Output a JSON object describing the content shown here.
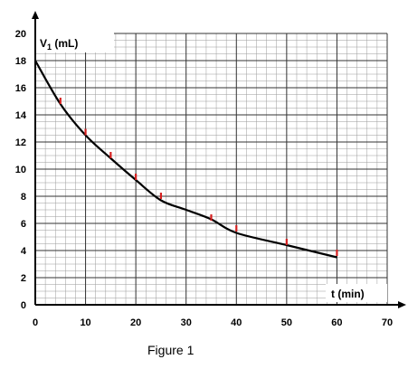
{
  "chart_data": {
    "type": "line",
    "ylabel_main": "V",
    "ylabel_sub": "1",
    "ylabel_unit": " (mL)",
    "xlabel": "t (min)",
    "caption": "Figure 1",
    "xlim": [
      0,
      70
    ],
    "ylim": [
      0,
      20
    ],
    "x_ticks": [
      0,
      10,
      20,
      30,
      40,
      50,
      60,
      70
    ],
    "y_ticks": [
      0,
      2,
      4,
      6,
      8,
      10,
      12,
      14,
      16,
      18,
      20
    ],
    "grid": true,
    "curve": {
      "x": [
        0,
        5,
        10,
        15,
        20,
        25,
        30,
        35,
        40,
        50,
        60
      ],
      "y": [
        18,
        14.8,
        12.5,
        10.8,
        9.2,
        7.7,
        7.0,
        6.3,
        5.3,
        4.4,
        3.5
      ]
    },
    "points": {
      "x": [
        5,
        10,
        15,
        20,
        25,
        35,
        40,
        50,
        60
      ],
      "y": [
        15.0,
        12.7,
        11.0,
        9.4,
        8.0,
        6.4,
        5.6,
        4.6,
        3.8
      ],
      "color": "#d62020"
    }
  }
}
